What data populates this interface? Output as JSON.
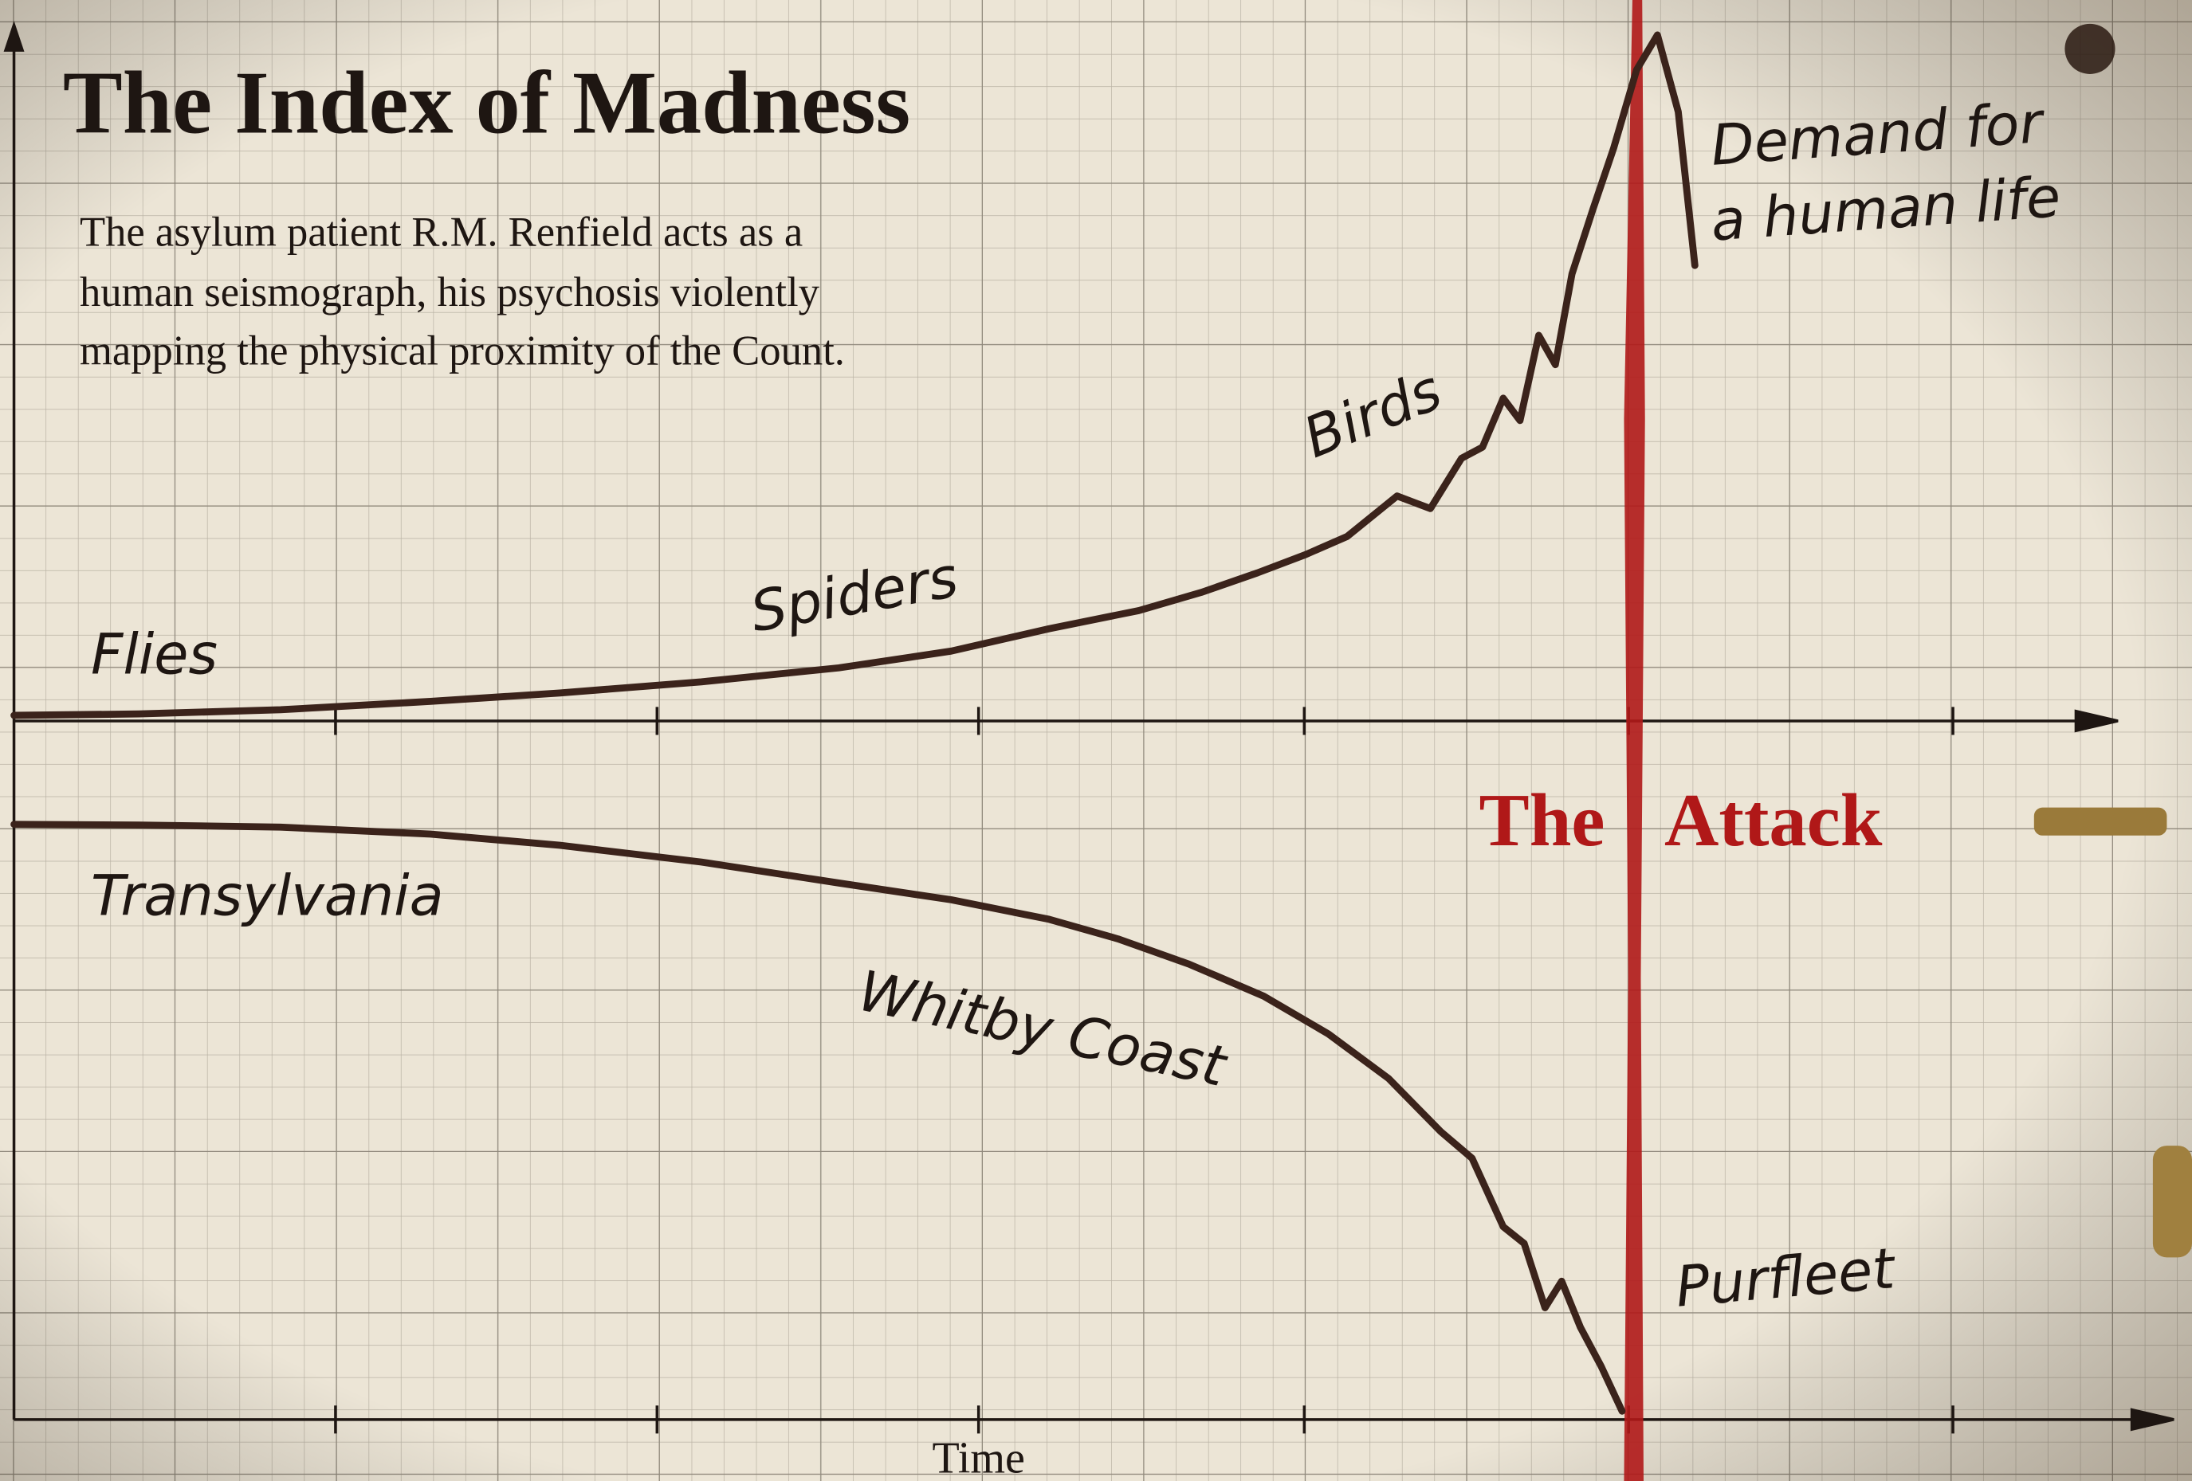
{
  "chart_data": {
    "type": "line",
    "title": "The Index of Madness",
    "subtitle_lines": [
      "The asylum patient R.M. Renfield acts as a",
      "human seismograph, his psychosis violently",
      "mapping the physical proximity of the Count."
    ],
    "x_label": "Time",
    "xlim": [
      0,
      100
    ],
    "ylim": [
      -100,
      100
    ],
    "series": [
      {
        "color": "#3b231b",
        "x": [
          0,
          6,
          12.8,
          20,
          26.2,
          33,
          39.6,
          45,
          49.7,
          54,
          57,
          59.7,
          62,
          64,
          66.4,
          68,
          69.5,
          70.5,
          71.5,
          72.3,
          73.2,
          74,
          74.8,
          75.8,
          76.8,
          77.9,
          78.9,
          79.9,
          80.7
        ],
        "values": [
          0.8,
          1,
          1.6,
          2.8,
          4,
          5.6,
          7.6,
          10,
          13.2,
          15.8,
          18.4,
          21.2,
          23.8,
          26.4,
          32.2,
          30.4,
          37.6,
          39.2,
          46.2,
          43,
          55.2,
          51,
          64,
          73.2,
          82,
          93.2,
          98.2,
          87.2,
          65.2
        ]
      },
      {
        "color": "#3b231b",
        "x": [
          0,
          6,
          12.8,
          20,
          26.2,
          33,
          39.6,
          45,
          49.7,
          53,
          56.4,
          60,
          63.1,
          66,
          68.5,
          70,
          71.5,
          72.5,
          73.5,
          74.3,
          75.2,
          76.2,
          77.2
        ],
        "values": [
          -14.8,
          -14.9,
          -15.2,
          -16.2,
          -17.8,
          -20.2,
          -23.2,
          -25.6,
          -28.4,
          -31.2,
          -34.8,
          -39.4,
          -44.8,
          -51.2,
          -58.8,
          -62.6,
          -72.4,
          -74.8,
          -84,
          -80.2,
          -86.8,
          -92.4,
          -98.8
        ]
      }
    ],
    "annotations": [
      "Flies",
      "Spiders",
      "Birds",
      "Transylvania",
      "Whitby Coast",
      "Purfleet"
    ],
    "demand_lines": [
      "Demand for",
      "a human life"
    ],
    "event": {
      "label": "The Attack",
      "x": 77.9,
      "color": "#b01818"
    }
  }
}
